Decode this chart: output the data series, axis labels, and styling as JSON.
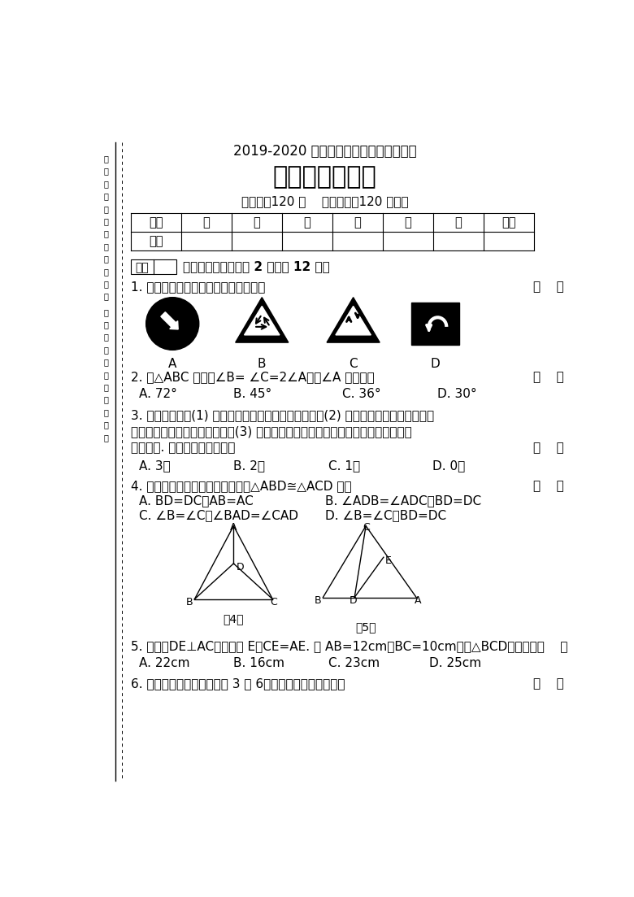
{
  "title1": "2019-2020 学年上学期期中教学质量检测",
  "title2": "八年级数学试卷",
  "subtitle": "（满分：120 分    答题时间：120 分钟）",
  "table_headers": [
    "题号",
    "一",
    "二",
    "三",
    "四",
    "五",
    "六",
    "总分"
  ],
  "section1_title": "一、选择题（每小题 2 分，共 12 分）",
  "q1": "1. 下列交通标志中，是轴对称图形的是",
  "q1_labels": [
    "A",
    "B",
    "C",
    "D"
  ],
  "q2": "2. 在△ABC 中，若∠B= ∠C=2∠A，则∠A 的度数为",
  "q2_opts": [
    "A. 72°",
    "B. 45°",
    "C. 36°",
    "D. 30°"
  ],
  "q3_line1": "3. 下列命题中：(1) 形状相同的两个三角形是全等形；(2) 在两个三角形中，相等的角",
  "q3_line2": "是对应角，相等的边是对应边；(3) 全等三角形对应边上的高、中线及对应角平分线",
  "q3_line3": "分别相等. 其中真命题的个数有",
  "q3_opts": [
    "A. 3个",
    "B. 2个",
    "C. 1个",
    "D. 0个"
  ],
  "q4": "4. 如图，在下列条件中，不能证明△ABD≅△ACD 的是",
  "q4_opt_A": "A. BD=DC，AB=AC",
  "q4_opt_B": "B. ∠ADB=∠ADC，BD=DC",
  "q4_opt_C": "C. ∠B=∠C，∠BAD=∠CAD",
  "q4_opt_D": "D. ∠B=∠C，BD=DC",
  "q4_label": "第4题",
  "q5_label": "第5题",
  "q5": "5. 如图，DE⊥AC，垂足为 E，CE=AE. 若 AB=12cm，BC=10cm，则△BCD的周长是（    ）",
  "q5_opts": [
    "A. 22cm",
    "B. 16cm",
    "C. 23cm",
    "D. 25cm"
  ],
  "q6": "6. 等腰三角形的两边分别为 3 和 6，则这个三角形的周长是",
  "bg_color": "#ffffff"
}
